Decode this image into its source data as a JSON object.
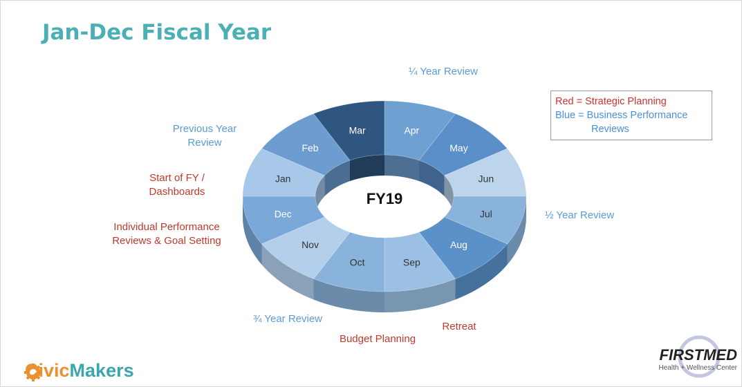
{
  "title": "Jan-Dec Fiscal Year",
  "center_label": "FY19",
  "segments": [
    {
      "label": "Apr",
      "color": "#6fa0d2"
    },
    {
      "label": "May",
      "color": "#5b8fc9"
    },
    {
      "label": "Jun",
      "color": "#bcd5ec"
    },
    {
      "label": "Jul",
      "color": "#8ab3dc"
    },
    {
      "label": "Aug",
      "color": "#5a91c8"
    },
    {
      "label": "Sep",
      "color": "#9cc0e3"
    },
    {
      "label": "Oct",
      "color": "#8ab3dc"
    },
    {
      "label": "Nov",
      "color": "#b3cfeb"
    },
    {
      "label": "Dec",
      "color": "#7aa8d8"
    },
    {
      "label": "Jan",
      "color": "#a8c8ea"
    },
    {
      "label": "Feb",
      "color": "#6c9cd0"
    },
    {
      "label": "Mar",
      "color": "#2e5680"
    }
  ],
  "annotations": [
    {
      "text": "¼ Year Review",
      "color": "#5b9bd5"
    },
    {
      "text": "Previous Year Review",
      "color": "#5b9bd5"
    },
    {
      "text": "Start of FY / Dashboards",
      "color": "#c0392b"
    },
    {
      "text": "Individual Performance Reviews & Goal Setting",
      "color": "#c0392b"
    },
    {
      "text": "½ Year Review",
      "color": "#5b9bd5"
    },
    {
      "text": "¾ Year Review",
      "color": "#5b9bd5"
    },
    {
      "text": "Budget Planning",
      "color": "#c0392b"
    },
    {
      "text": "Retreat",
      "color": "#c0392b"
    }
  ],
  "legend": [
    {
      "text": "Red = Strategic Planning",
      "color": "#d0312d"
    },
    {
      "text": "Blue = Business Performance Reviews",
      "color": "#4a90d9"
    }
  ],
  "logos": {
    "left_part1": "Civic",
    "left_part2": "Makers",
    "right_title": "FIRSTMED",
    "right_subtitle": "Health + Wellness Center"
  }
}
